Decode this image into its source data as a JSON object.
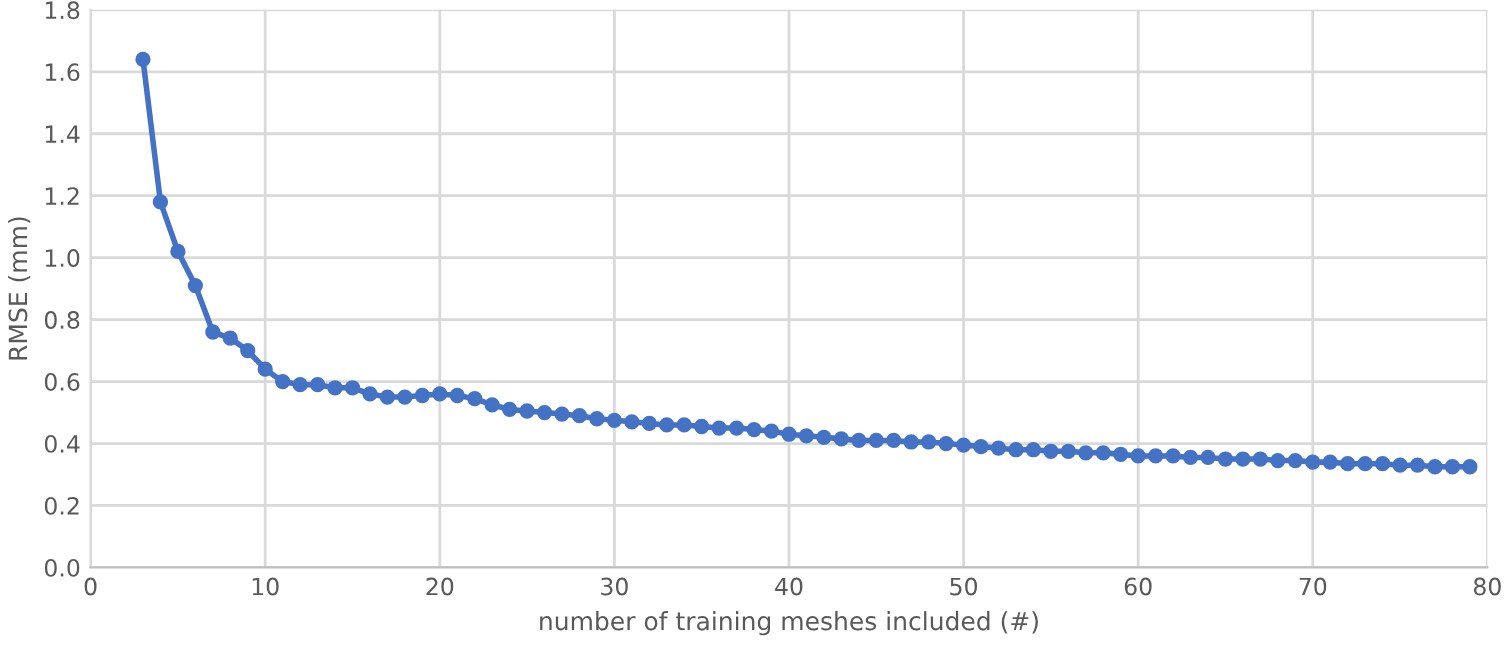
{
  "chart_data": {
    "type": "line",
    "xlabel": "number of training meshes included (#)",
    "ylabel": "RMSE (mm)",
    "x": [
      3,
      4,
      5,
      6,
      7,
      8,
      9,
      10,
      11,
      12,
      13,
      14,
      15,
      16,
      17,
      18,
      19,
      20,
      21,
      22,
      23,
      24,
      25,
      26,
      27,
      28,
      29,
      30,
      31,
      32,
      33,
      34,
      35,
      36,
      37,
      38,
      39,
      40,
      41,
      42,
      43,
      44,
      45,
      46,
      47,
      48,
      49,
      50,
      51,
      52,
      53,
      54,
      55,
      56,
      57,
      58,
      59,
      60,
      61,
      62,
      63,
      64,
      65,
      66,
      67,
      68,
      69,
      70,
      71,
      72,
      73,
      74,
      75,
      76,
      77,
      78,
      79
    ],
    "series": [
      {
        "color": "#4472c4",
        "values": [
          1.64,
          1.18,
          1.02,
          0.91,
          0.76,
          0.74,
          0.7,
          0.64,
          0.6,
          0.59,
          0.59,
          0.58,
          0.58,
          0.56,
          0.55,
          0.55,
          0.555,
          0.56,
          0.555,
          0.545,
          0.525,
          0.51,
          0.505,
          0.5,
          0.495,
          0.49,
          0.48,
          0.475,
          0.47,
          0.465,
          0.46,
          0.46,
          0.455,
          0.45,
          0.45,
          0.445,
          0.44,
          0.43,
          0.425,
          0.42,
          0.415,
          0.41,
          0.41,
          0.41,
          0.405,
          0.405,
          0.4,
          0.395,
          0.39,
          0.385,
          0.38,
          0.38,
          0.375,
          0.375,
          0.37,
          0.37,
          0.365,
          0.36,
          0.36,
          0.36,
          0.355,
          0.355,
          0.35,
          0.35,
          0.35,
          0.345,
          0.345,
          0.34,
          0.34,
          0.335,
          0.335,
          0.335,
          0.33,
          0.33,
          0.325,
          0.325,
          0.325
        ]
      }
    ],
    "xlim": [
      0,
      80
    ],
    "xticks": [
      0,
      10,
      20,
      30,
      40,
      50,
      60,
      70,
      80
    ],
    "ylim": [
      0,
      1.8
    ],
    "yticks": [
      {
        "value": 0,
        "label": "0.0"
      },
      {
        "value": 0.2,
        "label": "0.2"
      },
      {
        "value": 0.4,
        "label": "0.4"
      },
      {
        "value": 0.6,
        "label": "0.6"
      },
      {
        "value": 0.8,
        "label": "0.8"
      },
      {
        "value": 1.0,
        "label": "1.0"
      },
      {
        "value": 1.2,
        "label": "1.2"
      },
      {
        "value": 1.4,
        "label": "1.4"
      },
      {
        "value": 1.6,
        "label": "1.6"
      },
      {
        "value": 1.8,
        "label": "1.8"
      }
    ],
    "grid": true,
    "marker": "circle",
    "line_style": "solid"
  }
}
